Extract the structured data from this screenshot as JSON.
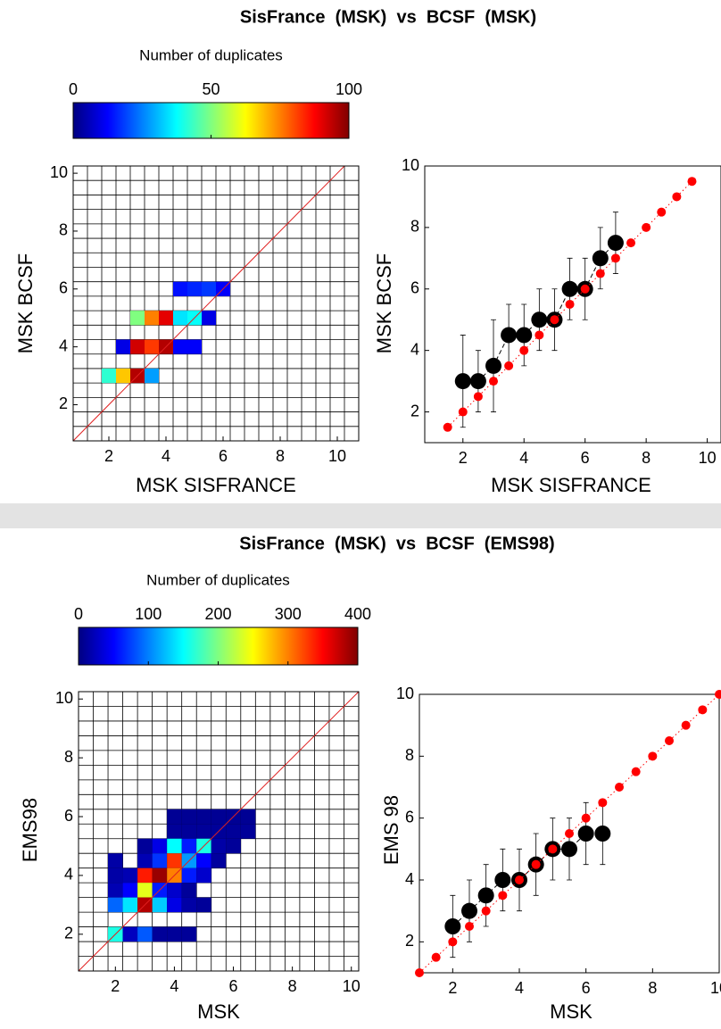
{
  "chart_data": [
    {
      "type": "heatmap",
      "title": "SisFrance  (MSK)  vs  BCSF  (MSK)",
      "colormap": "jet",
      "colorbar": {
        "label": "Number of duplicates",
        "lim": [
          0,
          100
        ],
        "ticks": [
          0,
          50,
          100
        ]
      },
      "xlabel": "MSK SISFRANCE",
      "ylabel": "MSK BCSF",
      "xlim": [
        0.75,
        10.75
      ],
      "ylim": [
        0.75,
        10.25
      ],
      "xticks": [
        2,
        4,
        6,
        8,
        10
      ],
      "yticks": [
        2,
        4,
        6,
        8,
        10
      ],
      "cell_size": 0.5,
      "diagonal": true,
      "cells": {
        "x": [
          2,
          2.5,
          3,
          3.5,
          2.5,
          3,
          3.5,
          4,
          4.5,
          5,
          3,
          3.5,
          4,
          4.5,
          5,
          5.5,
          4.5,
          5,
          5.5,
          6
        ],
        "y": [
          3,
          3,
          3,
          3,
          4,
          4,
          4,
          4,
          4,
          4,
          5,
          5,
          5,
          5,
          5,
          5,
          6,
          6,
          6,
          6
        ],
        "values": [
          42,
          68,
          95,
          28,
          10,
          92,
          82,
          95,
          12,
          12,
          50,
          75,
          90,
          35,
          38,
          10,
          14,
          16,
          18,
          12
        ]
      }
    },
    {
      "type": "scatter",
      "xlabel": "MSK SISFRANCE",
      "ylabel": "MSK BCSF",
      "xlim": [
        0.75,
        10.45
      ],
      "ylim": [
        1,
        10
      ],
      "xticks": [
        2,
        4,
        6,
        8,
        10
      ],
      "yticks": [
        2,
        4,
        6,
        8,
        10
      ],
      "series": [
        {
          "color": "#000000",
          "line": "dashed",
          "marker_size": 9,
          "x": [
            2,
            2.5,
            3,
            3.5,
            4,
            4.5,
            5,
            5.5,
            6,
            6.5,
            7
          ],
          "values": [
            3,
            3,
            3.5,
            4.5,
            4.5,
            5,
            5,
            6,
            6,
            7,
            7.5
          ],
          "errors": [
            1.5,
            1,
            1.5,
            1,
            1,
            1,
            1,
            1,
            1,
            1,
            1
          ]
        },
        {
          "color": "#ff0000",
          "line": "dotted",
          "marker_size": 5,
          "x": [
            1.5,
            2,
            2.5,
            3,
            3.5,
            4,
            4.5,
            5,
            5.5,
            6,
            6.5,
            7,
            7.5,
            8,
            8.5,
            9,
            9.5
          ],
          "values": [
            1.5,
            2,
            2.5,
            3,
            3.5,
            4,
            4.5,
            5,
            5.5,
            6,
            6.5,
            7,
            7.5,
            8,
            8.5,
            9,
            9.5
          ]
        }
      ]
    },
    {
      "type": "heatmap",
      "title": "SisFrance  (MSK)  vs  BCSF  (EMS98)",
      "colormap": "jet",
      "colorbar": {
        "label": "Number of duplicates",
        "lim": [
          0,
          400
        ],
        "ticks": [
          0,
          100,
          200,
          300,
          400
        ]
      },
      "xlabel": "MSK",
      "ylabel": "EMS98",
      "xlim": [
        0.75,
        10.25
      ],
      "ylim": [
        0.75,
        10.25
      ],
      "xticks": [
        2,
        4,
        6,
        8,
        10
      ],
      "yticks": [
        2,
        4,
        6,
        8,
        10
      ],
      "cell_size": 0.5,
      "diagonal": true,
      "cells": {
        "x": [
          4,
          4.5,
          5,
          5.5,
          6,
          6.5,
          4,
          4.5,
          5,
          5.5,
          6,
          6.5,
          3,
          3.5,
          4,
          4.5,
          5,
          5.5,
          6,
          2,
          3,
          3.5,
          4,
          4.5,
          5,
          5.5,
          2,
          2.5,
          3,
          3.5,
          4,
          4.5,
          5,
          2,
          2.5,
          3,
          3.5,
          4,
          4.5,
          2,
          2.5,
          3,
          3.5,
          4,
          4.5,
          5,
          2,
          2.5,
          3,
          3.5,
          4,
          4.5
        ],
        "y": [
          6,
          6,
          6,
          6,
          6,
          6,
          5.5,
          5.5,
          5.5,
          5.5,
          5.5,
          5.5,
          5,
          5,
          5,
          5,
          5,
          5,
          5,
          4.5,
          4.5,
          4.5,
          4.5,
          4.5,
          4.5,
          4.5,
          4,
          4,
          4,
          4,
          4,
          4,
          4,
          3.5,
          3.5,
          3.5,
          3.5,
          3.5,
          3.5,
          3,
          3,
          3,
          3,
          3,
          3,
          3,
          2,
          2,
          2,
          2,
          2,
          2
        ],
        "values": [
          8,
          8,
          8,
          8,
          8,
          8,
          10,
          10,
          10,
          10,
          10,
          10,
          10,
          40,
          150,
          60,
          160,
          15,
          10,
          15,
          20,
          70,
          330,
          110,
          50,
          12,
          15,
          20,
          340,
          390,
          300,
          60,
          30,
          20,
          50,
          240,
          60,
          30,
          10,
          90,
          140,
          380,
          130,
          40,
          15,
          10,
          160,
          25,
          85,
          10,
          10,
          10
        ]
      }
    },
    {
      "type": "scatter",
      "xlabel": "MSK",
      "ylabel": "EMS 98",
      "xlim": [
        1,
        10
      ],
      "ylim": [
        1,
        10
      ],
      "xticks": [
        2,
        4,
        6,
        8,
        10
      ],
      "yticks": [
        2,
        4,
        6,
        8,
        10
      ],
      "series": [
        {
          "color": "#000000",
          "line": "dashed",
          "marker_size": 9,
          "x": [
            2,
            2.5,
            3,
            3.5,
            4,
            4.5,
            5,
            5.5,
            6,
            6.5
          ],
          "values": [
            2.5,
            3,
            3.5,
            4,
            4,
            4.5,
            5,
            5,
            5.5,
            5.5
          ],
          "errors": [
            1,
            1,
            1,
            1,
            1,
            1,
            1,
            1,
            1,
            1
          ]
        },
        {
          "color": "#ff0000",
          "line": "dotted",
          "marker_size": 5,
          "x": [
            1,
            1.5,
            2,
            2.5,
            3,
            3.5,
            4,
            4.5,
            5,
            5.5,
            6,
            6.5,
            7,
            7.5,
            8,
            8.5,
            9,
            9.5,
            10
          ],
          "values": [
            1,
            1.5,
            2,
            2.5,
            3,
            3.5,
            4,
            4.5,
            5,
            5.5,
            6,
            6.5,
            7,
            7.5,
            8,
            8.5,
            9,
            9.5,
            10
          ]
        }
      ]
    }
  ]
}
